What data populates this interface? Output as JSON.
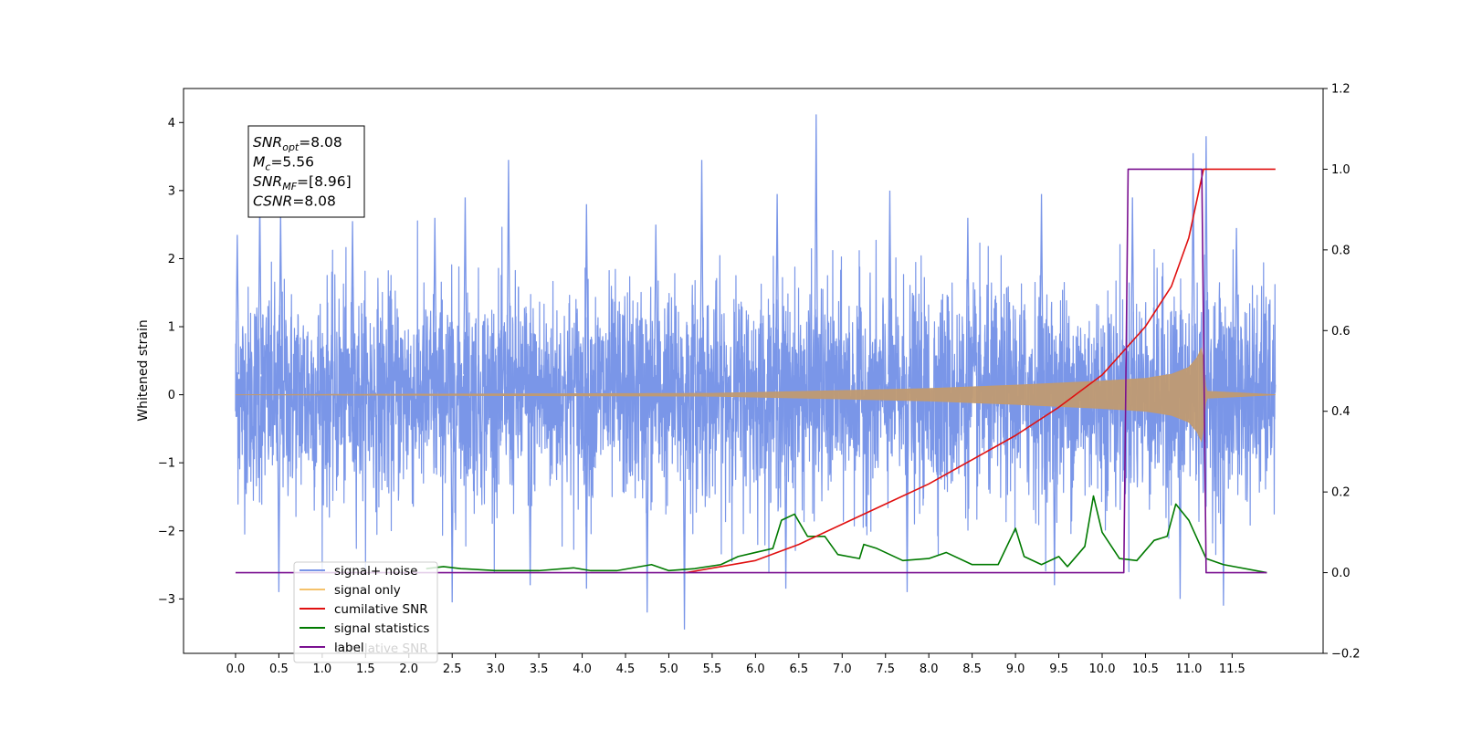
{
  "chart_data": {
    "type": "line",
    "title": "",
    "xlabel": "",
    "ylabel": "Whitened strain",
    "xlim": [
      -0.6,
      12.55
    ],
    "ylim": [
      -3.8,
      4.5
    ],
    "y2lim": [
      -0.2,
      1.2
    ],
    "x_ticks": [
      "0.0",
      "0.5",
      "1.0",
      "1.5",
      "2.0",
      "2.5",
      "3.0",
      "3.5",
      "4.0",
      "4.5",
      "5.0",
      "5.5",
      "6.0",
      "6.5",
      "7.0",
      "7.5",
      "8.0",
      "8.5",
      "9.0",
      "9.5",
      "10.0",
      "10.5",
      "11.0",
      "11.5"
    ],
    "y_ticks": [
      "−3",
      "−2",
      "−1",
      "0",
      "1",
      "2",
      "3",
      "4"
    ],
    "y2_ticks": [
      "−0.2",
      "0.0",
      "0.2",
      "0.4",
      "0.6",
      "0.8",
      "1.0",
      "1.2"
    ],
    "grid": false,
    "legend_placement": "lower-left",
    "annotation": {
      "lines": [
        {
          "base": "SNR",
          "sub": "opt",
          "value": "=8.08"
        },
        {
          "base": "M",
          "sub": "c",
          "value": "=5.56"
        },
        {
          "base": "SNR",
          "sub": "MF",
          "value": "=[8.96]"
        },
        {
          "base": "CSNR",
          "sub": "",
          "value": "=8.08"
        }
      ]
    },
    "legend": [
      {
        "label": "signal+ noise",
        "color": "#7a96e8"
      },
      {
        "label": "signal only",
        "color": "#f5c26b"
      },
      {
        "label": "cumilative SNR",
        "color": "#e01010"
      },
      {
        "label": "signal statistics",
        "color": "#007a00"
      },
      {
        "label": "label",
        "color": "#7a1090"
      }
    ],
    "legend_ghost_text": "cumilative SNR",
    "series": [
      {
        "name": "signal+ noise",
        "axis": "left",
        "color": "#7a96e8",
        "x_range": [
          0.0,
          12.0
        ],
        "noise_sigma": 1.0,
        "peaks": [
          {
            "x": 0.02,
            "y": 2.35
          },
          {
            "x": 0.28,
            "y": 2.9
          },
          {
            "x": 0.52,
            "y": 2.7
          },
          {
            "x": 1.35,
            "y": 2.55
          },
          {
            "x": 2.3,
            "y": 2.6
          },
          {
            "x": 2.65,
            "y": 2.9
          },
          {
            "x": 3.15,
            "y": 3.45
          },
          {
            "x": 4.05,
            "y": 2.8
          },
          {
            "x": 4.85,
            "y": 2.5
          },
          {
            "x": 5.38,
            "y": 3.45
          },
          {
            "x": 6.25,
            "y": 2.95
          },
          {
            "x": 6.7,
            "y": 4.12
          },
          {
            "x": 7.55,
            "y": 3.0
          },
          {
            "x": 8.45,
            "y": 2.6
          },
          {
            "x": 9.3,
            "y": 2.95
          },
          {
            "x": 10.35,
            "y": 2.9
          },
          {
            "x": 11.05,
            "y": 3.55
          },
          {
            "x": 11.2,
            "y": 3.8
          },
          {
            "x": 11.55,
            "y": 2.45
          },
          {
            "x": 0.5,
            "y": -2.9
          },
          {
            "x": 2.5,
            "y": -3.05
          },
          {
            "x": 3.4,
            "y": -2.8
          },
          {
            "x": 4.05,
            "y": -2.85
          },
          {
            "x": 4.75,
            "y": -3.2
          },
          {
            "x": 5.18,
            "y": -3.45
          },
          {
            "x": 6.35,
            "y": -2.85
          },
          {
            "x": 7.75,
            "y": -2.9
          },
          {
            "x": 9.45,
            "y": -2.8
          },
          {
            "x": 10.9,
            "y": -3.0
          },
          {
            "x": 11.4,
            "y": -3.1
          }
        ]
      },
      {
        "name": "signal only",
        "axis": "left",
        "color": "#c09a72",
        "envelope": [
          {
            "x": 0.0,
            "y": 0.0
          },
          {
            "x": 5.5,
            "y": 0.02
          },
          {
            "x": 7.0,
            "y": 0.06
          },
          {
            "x": 8.0,
            "y": 0.09
          },
          {
            "x": 9.0,
            "y": 0.14
          },
          {
            "x": 10.0,
            "y": 0.2
          },
          {
            "x": 10.5,
            "y": 0.24
          },
          {
            "x": 10.8,
            "y": 0.3
          },
          {
            "x": 11.0,
            "y": 0.4
          },
          {
            "x": 11.1,
            "y": 0.55
          },
          {
            "x": 11.15,
            "y": 0.7
          },
          {
            "x": 11.2,
            "y": 0.05
          },
          {
            "x": 12.0,
            "y": 0.0
          }
        ]
      },
      {
        "name": "cumilative SNR",
        "axis": "right",
        "color": "#e01010",
        "x": [
          5.2,
          6.0,
          6.5,
          7.0,
          7.5,
          8.0,
          8.5,
          9.0,
          9.5,
          10.0,
          10.5,
          10.8,
          11.0,
          11.12,
          11.17,
          12.0
        ],
        "y": [
          0.0,
          0.03,
          0.07,
          0.12,
          0.17,
          0.22,
          0.28,
          0.34,
          0.41,
          0.49,
          0.61,
          0.71,
          0.83,
          0.95,
          1.0,
          1.0
        ]
      },
      {
        "name": "signal statistics",
        "axis": "right",
        "color": "#007a00",
        "x": [
          2.2,
          2.4,
          2.6,
          3.0,
          3.5,
          3.9,
          4.1,
          4.4,
          4.8,
          5.0,
          5.3,
          5.6,
          5.8,
          6.0,
          6.2,
          6.3,
          6.45,
          6.6,
          6.8,
          6.95,
          7.2,
          7.25,
          7.4,
          7.7,
          8.0,
          8.2,
          8.5,
          8.8,
          9.0,
          9.1,
          9.3,
          9.5,
          9.6,
          9.8,
          9.9,
          10.0,
          10.2,
          10.4,
          10.6,
          10.75,
          10.85,
          11.0,
          11.2,
          11.4,
          11.9
        ],
        "y": [
          0.01,
          0.015,
          0.01,
          0.005,
          0.005,
          0.012,
          0.005,
          0.005,
          0.02,
          0.005,
          0.01,
          0.02,
          0.04,
          0.05,
          0.06,
          0.13,
          0.145,
          0.09,
          0.09,
          0.045,
          0.035,
          0.07,
          0.06,
          0.03,
          0.035,
          0.05,
          0.02,
          0.02,
          0.11,
          0.04,
          0.02,
          0.04,
          0.015,
          0.065,
          0.19,
          0.1,
          0.035,
          0.03,
          0.08,
          0.09,
          0.17,
          0.13,
          0.035,
          0.02,
          0.0
        ]
      },
      {
        "name": "label",
        "axis": "right",
        "color": "#7a1090",
        "x": [
          0.0,
          10.25,
          10.3,
          11.15,
          11.2,
          11.9
        ],
        "y": [
          0.0,
          0.0,
          1.0,
          1.0,
          0.0,
          0.0
        ]
      }
    ]
  }
}
